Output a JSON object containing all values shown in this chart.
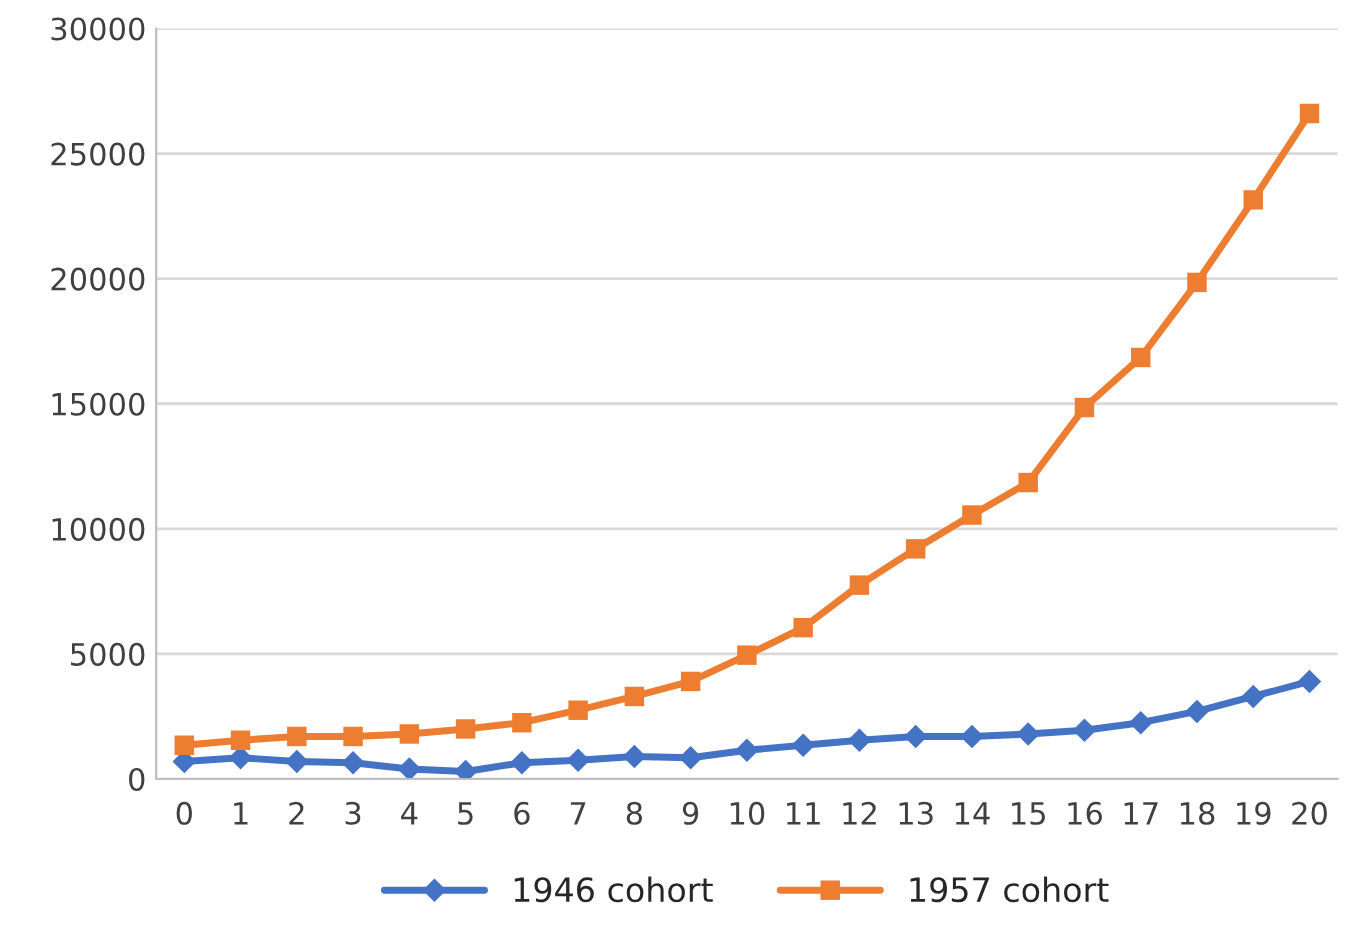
{
  "chart_data": {
    "type": "line",
    "categories": [
      "0",
      "1",
      "2",
      "3",
      "4",
      "5",
      "6",
      "7",
      "8",
      "9",
      "10",
      "11",
      "12",
      "13",
      "14",
      "15",
      "16",
      "17",
      "18",
      "19",
      "20"
    ],
    "series": [
      {
        "name": "1946 cohort",
        "color": "#4472c4",
        "marker": "diamond",
        "values": [
          700,
          850,
          700,
          650,
          400,
          300,
          650,
          750,
          900,
          850,
          1150,
          1350,
          1550,
          1700,
          1700,
          1800,
          1950,
          2250,
          2700,
          3300,
          3900
        ]
      },
      {
        "name": "1957 cohort",
        "color": "#ed7d31",
        "marker": "square",
        "values": [
          1350,
          1550,
          1700,
          1700,
          1800,
          2000,
          2250,
          2750,
          3300,
          3900,
          4950,
          6050,
          7750,
          9200,
          10550,
          11850,
          14850,
          16850,
          19850,
          23150,
          26600
        ]
      }
    ],
    "ylim": [
      0,
      30000
    ],
    "yticks": [
      0,
      5000,
      10000,
      15000,
      20000,
      25000,
      30000
    ],
    "grid": "y",
    "legend": "bottom",
    "line_style": "solid"
  }
}
